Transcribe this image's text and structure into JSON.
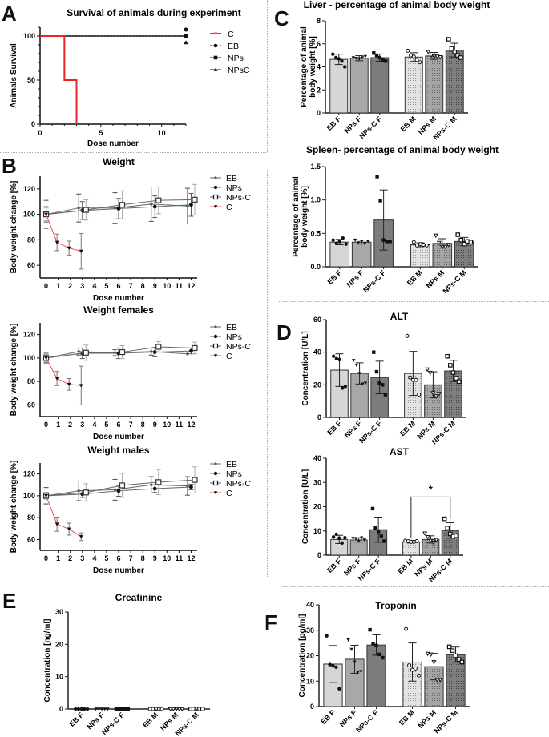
{
  "panels": {
    "A": "A",
    "B": "B",
    "C": "C",
    "D": "D",
    "E": "E",
    "F": "F"
  },
  "chart_data": [
    {
      "id": "survival",
      "type": "line",
      "title": "Survival of animals during experiment",
      "xlabel": "Dose number",
      "ylabel": "Animals Survival",
      "xlim": [
        0,
        12
      ],
      "ylim": [
        0,
        110
      ],
      "xticks": [
        0,
        5,
        10
      ],
      "yticks": [
        0,
        50,
        100
      ],
      "legend_position": "right",
      "series": [
        {
          "name": "C",
          "color": "#e8262a",
          "style": "step",
          "x": [
            0,
            2,
            2,
            3,
            3
          ],
          "y": [
            100,
            100,
            50,
            50,
            0
          ],
          "marker": "triangle-down"
        },
        {
          "name": "EB",
          "color": "#111111",
          "style": "dotted",
          "x": [
            0,
            12
          ],
          "y": [
            100,
            100
          ],
          "marker": "circle"
        },
        {
          "name": "NPs",
          "color": "#111111",
          "style": "solid",
          "x": [
            0,
            12
          ],
          "y": [
            100,
            100
          ],
          "marker": "square"
        },
        {
          "name": "NPsC",
          "color": "#111111",
          "style": "solid",
          "x": [
            0,
            12
          ],
          "y": [
            100,
            100
          ],
          "marker": "triangle"
        }
      ]
    },
    {
      "id": "weight",
      "type": "line",
      "title": "Weight",
      "xlabel": "Dose number",
      "ylabel": "Body weight change [%]",
      "xlim": [
        -0.5,
        12.5
      ],
      "ylim": [
        50,
        130
      ],
      "xticks": [
        0,
        1,
        2,
        3,
        4,
        5,
        6,
        7,
        8,
        9,
        10,
        11,
        12
      ],
      "yticks": [
        60,
        80,
        100,
        120
      ],
      "legend_position": "right",
      "series": [
        {
          "name": "EB",
          "color": "#2e7d32",
          "marker": "diamond",
          "x": [
            0,
            3,
            6,
            9,
            12
          ],
          "y": [
            100,
            105,
            105,
            108,
            106.5
          ],
          "err": [
            11,
            11,
            12,
            13.5,
            14
          ]
        },
        {
          "name": "NPs",
          "color": "#111111",
          "marker": "circle",
          "x": [
            0,
            3,
            6,
            9,
            12
          ],
          "y": [
            100,
            103,
            104.5,
            106,
            107.5
          ],
          "err": [
            6,
            7,
            8,
            8.5,
            9
          ]
        },
        {
          "name": "NPs-C",
          "color": "#555555",
          "marker": "square-open",
          "x": [
            0,
            3,
            6,
            9,
            12
          ],
          "y": [
            100,
            103.5,
            107.5,
            111,
            111.5
          ],
          "err": [
            5,
            8,
            11,
            10.5,
            12
          ]
        },
        {
          "name": "C",
          "color": "#e85050",
          "marker": "triangle-down",
          "x": [
            0,
            1,
            2,
            3
          ],
          "y": [
            100,
            78,
            73.5,
            71
          ],
          "err": [
            0,
            6.5,
            5.5,
            14
          ]
        }
      ]
    },
    {
      "id": "weight_females",
      "type": "line",
      "title": "Weight females",
      "xlabel": "Dose number",
      "ylabel": "Body weight change [%]",
      "xlim": [
        -0.5,
        12.5
      ],
      "ylim": [
        50,
        130
      ],
      "xticks": [
        0,
        1,
        2,
        3,
        4,
        5,
        6,
        7,
        8,
        9,
        10,
        11,
        12
      ],
      "yticks": [
        60,
        80,
        100,
        120
      ],
      "legend_position": "right",
      "series": [
        {
          "name": "EB",
          "color": "#2e7d32",
          "marker": "diamond",
          "x": [
            0,
            3,
            6,
            9,
            12
          ],
          "y": [
            100,
            105.5,
            104.5,
            105.5,
            103.5
          ],
          "err": [
            5,
            3,
            2.5,
            3,
            0
          ]
        },
        {
          "name": "NPs",
          "color": "#111111",
          "marker": "circle",
          "x": [
            0,
            3,
            6,
            9,
            12
          ],
          "y": [
            100,
            104,
            104,
            105,
            106
          ],
          "err": [
            4,
            4.5,
            4.5,
            4,
            2.5
          ]
        },
        {
          "name": "NPs-C",
          "color": "#555555",
          "marker": "square-open",
          "x": [
            0,
            3,
            6,
            9,
            12
          ],
          "y": [
            100,
            104.5,
            105,
            109.5,
            108.5
          ],
          "err": [
            3,
            6.5,
            5.5,
            4.5,
            5
          ]
        },
        {
          "name": "C",
          "color": "#e85050",
          "marker": "triangle-down",
          "x": [
            0,
            1,
            2,
            3
          ],
          "y": [
            100,
            82.5,
            77.5,
            76.5
          ],
          "err": [
            0,
            6,
            5,
            16.5
          ]
        }
      ]
    },
    {
      "id": "weight_males",
      "type": "line",
      "title": "Weight males",
      "xlabel": "Dose number",
      "ylabel": "Body weight change [%]",
      "xlim": [
        -0.5,
        12.5
      ],
      "ylim": [
        50,
        130
      ],
      "xticks": [
        0,
        1,
        2,
        3,
        4,
        5,
        6,
        7,
        8,
        9,
        10,
        11,
        12
      ],
      "yticks": [
        60,
        80,
        100,
        120
      ],
      "legend_position": "right",
      "series": [
        {
          "name": "EB",
          "color": "#2e7d32",
          "marker": "diamond",
          "x": [
            0,
            3,
            6,
            9,
            12
          ],
          "y": [
            100,
            104.5,
            105.5,
            110,
            109
          ],
          "err": [
            7.5,
            9,
            9.5,
            7.5,
            8.5
          ]
        },
        {
          "name": "NPs",
          "color": "#111111",
          "marker": "circle",
          "x": [
            0,
            3,
            6,
            9,
            12
          ],
          "y": [
            100,
            101.5,
            104.5,
            106.5,
            108
          ],
          "err": [
            3,
            3,
            5,
            3.5,
            2.5
          ]
        },
        {
          "name": "NPs-C",
          "color": "#555555",
          "marker": "square-open",
          "x": [
            0,
            3,
            6,
            9,
            12
          ],
          "y": [
            100,
            103,
            109.5,
            112.5,
            114.5
          ],
          "err": [
            3,
            8,
            11,
            11.5,
            12
          ]
        },
        {
          "name": "C",
          "color": "#e85050",
          "marker": "triangle-down",
          "x": [
            0,
            1,
            2,
            3
          ],
          "y": [
            100,
            74,
            69.5,
            62.5
          ],
          "err": [
            0,
            6.5,
            5.5,
            3.5
          ]
        }
      ]
    },
    {
      "id": "liver",
      "type": "bar",
      "title": "Liver - percentage of animal body weight",
      "ylabel": "Percentage of animal body weight [%]",
      "ylabel_lines": [
        "Percentage of animal",
        "body weight [%]"
      ],
      "ylim": [
        0,
        8
      ],
      "yticks": [
        0,
        2,
        4,
        6,
        8
      ],
      "categories": [
        "EB F",
        "NPs F",
        "NPs-C F",
        "EB M",
        "NPs M",
        "NPs-C M"
      ],
      "values": [
        4.65,
        4.75,
        4.8,
        4.85,
        4.95,
        5.45
      ],
      "sd": [
        0.45,
        0.22,
        0.32,
        0.38,
        0.3,
        0.6
      ],
      "points": [
        [
          5.1,
          4.8,
          4.7,
          4.5,
          4.0
        ],
        [
          4.8,
          4.75,
          4.7,
          4.8,
          4.9
        ],
        [
          5.2,
          5.0,
          4.8,
          4.6,
          4.5
        ],
        [
          5.4,
          5.0,
          4.9,
          4.6,
          4.4
        ],
        [
          5.3,
          5.0,
          4.9,
          4.9,
          4.85
        ],
        [
          6.4,
          5.6,
          5.3,
          5.0,
          4.8
        ]
      ]
    },
    {
      "id": "spleen",
      "type": "bar",
      "title": "Spleen- percentage of animal body weight",
      "ylabel": "Percentage of animal body weight [%]",
      "ylabel_lines": [
        "Percentage of animal",
        "body weight [%]"
      ],
      "ylim": [
        0,
        1.5
      ],
      "yticks": [
        0.0,
        0.5,
        1.0,
        1.5
      ],
      "ytick_labels": [
        "0.0",
        "0.5",
        "1.0",
        "1.5"
      ],
      "categories": [
        "EB F",
        "NPs F",
        "NPs-C F",
        "EB M",
        "NPs M",
        "NPs-C M"
      ],
      "values": [
        0.37,
        0.37,
        0.7,
        0.33,
        0.35,
        0.38
      ],
      "sd": [
        0.04,
        0.03,
        0.45,
        0.03,
        0.07,
        0.06
      ],
      "points": [
        [
          0.4,
          0.35,
          0.38,
          0.43,
          0.34
        ],
        [
          0.4,
          0.36,
          0.38,
          0.35,
          0.38
        ],
        [
          1.35,
          0.99,
          0.4,
          0.38,
          0.38
        ],
        [
          0.37,
          0.32,
          0.34,
          0.33,
          0.32
        ],
        [
          0.47,
          0.36,
          0.3,
          0.3,
          0.33
        ],
        [
          0.48,
          0.4,
          0.34,
          0.38,
          0.37
        ]
      ]
    },
    {
      "id": "alt",
      "type": "bar",
      "title": "ALT",
      "ylabel": "Concentration [U/L]",
      "ylim": [
        0,
        60
      ],
      "yticks": [
        0,
        20,
        40,
        60
      ],
      "categories": [
        "EB F",
        "NPs F",
        "NPs-C F",
        "EB M",
        "NPs M",
        "NPs-C M"
      ],
      "values": [
        29,
        27,
        24.5,
        27,
        20,
        28.5
      ],
      "sd": [
        10,
        6.5,
        10,
        13.5,
        8,
        6.5
      ],
      "points": [
        [
          37.5,
          36,
          35.5,
          18,
          19
        ],
        [
          35,
          32,
          27,
          20.5,
          21
        ],
        [
          40,
          28,
          21,
          20,
          14
        ],
        [
          50,
          24.5,
          23,
          23,
          14
        ],
        [
          29.5,
          27.5,
          15,
          13,
          14.5
        ],
        [
          37.5,
          32,
          27.5,
          24,
          22
        ]
      ]
    },
    {
      "id": "ast",
      "type": "bar",
      "title": "AST",
      "ylabel": "Concentration [U/L]",
      "ylim": [
        0,
        40
      ],
      "yticks": [
        0,
        10,
        20,
        30,
        40
      ],
      "categories": [
        "EB F",
        "NPs F",
        "NPs-C F",
        "EB M",
        "NPs M",
        "NPs-C M"
      ],
      "values": [
        6.5,
        6.3,
        10.5,
        5.5,
        6.5,
        10.2
      ],
      "sd": [
        1.7,
        0.9,
        5.2,
        0.5,
        1.5,
        3.2
      ],
      "points": [
        [
          7.5,
          8.6,
          7.0,
          5.0,
          7.2
        ],
        [
          7.0,
          6.8,
          5.8,
          7.2,
          6.3
        ],
        [
          19.2,
          11.2,
          9.8,
          7.8,
          5.8
        ],
        [
          6.0,
          5.8,
          5.5,
          5.5,
          5.8
        ],
        [
          9.0,
          7.5,
          6.0,
          5.2,
          6.3
        ],
        [
          15.0,
          11.2,
          8.8,
          7.8,
          8.0
        ]
      ],
      "significance": {
        "from": 3,
        "to": 5,
        "label": "*"
      }
    },
    {
      "id": "creatinine",
      "type": "bar",
      "title": "Creatinine",
      "ylabel": "Concentration [ng/ml]",
      "ylim": [
        0,
        30
      ],
      "yticks": [
        0,
        10,
        20,
        30
      ],
      "categories": [
        "EB F",
        "NPs F",
        "NPs-C F",
        "EB M",
        "NPs M",
        "NPs-C M"
      ],
      "values": [
        0,
        0,
        0,
        0,
        0,
        0
      ],
      "sd": [
        0,
        0,
        0,
        0,
        0,
        0
      ],
      "points": [
        [
          0,
          0,
          0,
          0,
          0
        ],
        [
          0,
          0,
          0,
          0,
          0
        ],
        [
          0,
          0,
          0,
          0,
          0
        ],
        [
          0,
          0,
          0,
          0,
          0
        ],
        [
          0,
          0,
          0,
          0,
          0
        ],
        [
          0,
          0,
          0,
          0,
          0
        ]
      ]
    },
    {
      "id": "troponin",
      "type": "bar",
      "title": "Troponin",
      "ylabel": "Concentration [pg/ml]",
      "ylim": [
        0,
        40
      ],
      "yticks": [
        0,
        10,
        20,
        30,
        40
      ],
      "categories": [
        "EB F",
        "NPs F",
        "NPs-C F",
        "EB M",
        "NPs M",
        "NPs-C M"
      ],
      "values": [
        16.7,
        18.6,
        24.2,
        17.5,
        15.7,
        20.4
      ],
      "sd": [
        7.3,
        5.5,
        4.0,
        7.5,
        5.2,
        3.0
      ],
      "points": [
        [
          27.8,
          16.5,
          16.0,
          15.5,
          7.0
        ],
        [
          26.2,
          22.5,
          17.5,
          13.5,
          13.8
        ],
        [
          30.2,
          24.8,
          24.0,
          20.5,
          19.2
        ],
        [
          30.5,
          16.2,
          14.5,
          15.0,
          12.2
        ],
        [
          20.8,
          20.5,
          17.5,
          10.5,
          10.5
        ],
        [
          23.5,
          22.0,
          20.0,
          18.5,
          17.5
        ]
      ]
    }
  ]
}
